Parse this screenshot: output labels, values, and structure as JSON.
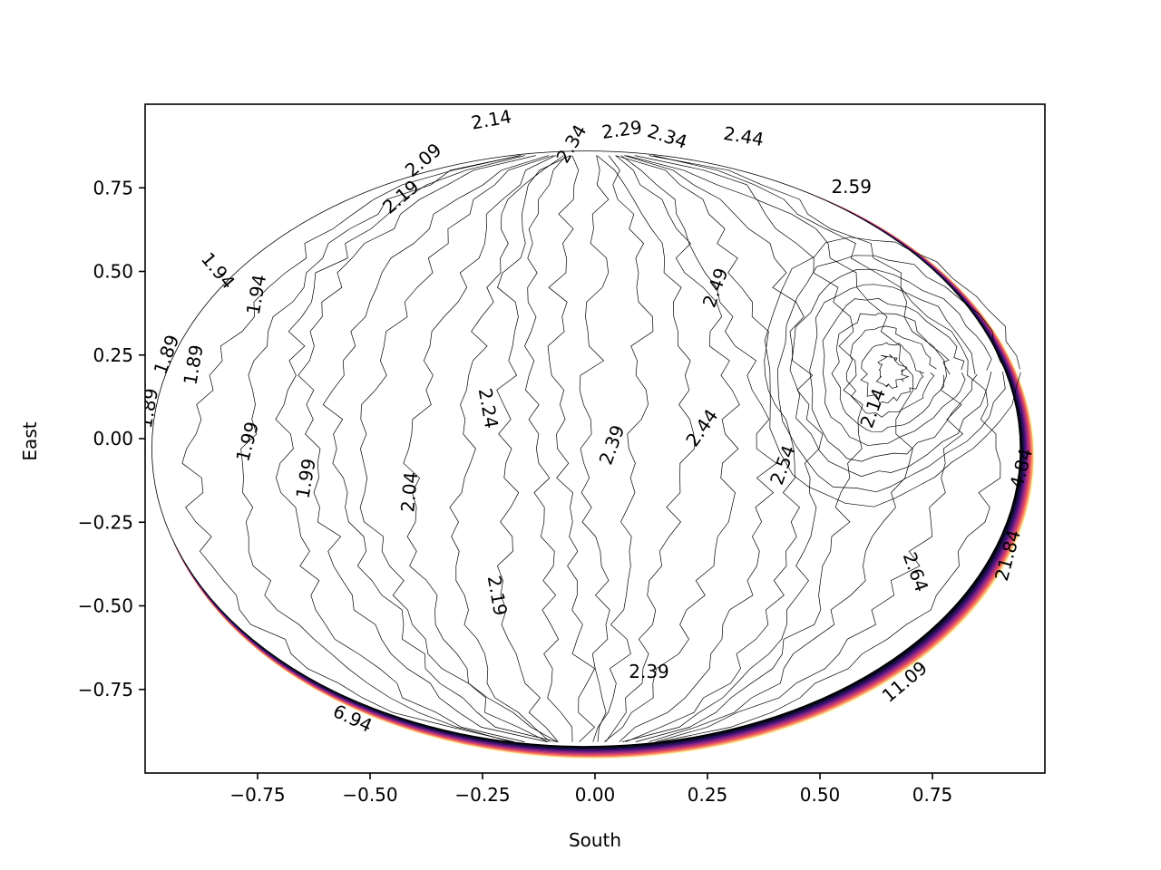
{
  "chart_data": {
    "type": "contour",
    "xlabel": "South",
    "ylabel": "East",
    "xlim": [
      -1.0,
      1.0
    ],
    "ylim": [
      -1.0,
      1.0
    ],
    "grid": false,
    "colormap": "magma",
    "x_ticks": [
      {
        "value": -0.75,
        "label": "−0.75"
      },
      {
        "value": -0.5,
        "label": "−0.50"
      },
      {
        "value": -0.25,
        "label": "−0.25"
      },
      {
        "value": 0.0,
        "label": "0.00"
      },
      {
        "value": 0.25,
        "label": "0.25"
      },
      {
        "value": 0.5,
        "label": "0.50"
      },
      {
        "value": 0.75,
        "label": "0.75"
      }
    ],
    "y_ticks": [
      {
        "value": 0.75,
        "label": "0.75"
      },
      {
        "value": 0.5,
        "label": "0.50"
      },
      {
        "value": 0.25,
        "label": "0.25"
      },
      {
        "value": 0.0,
        "label": "0.00"
      },
      {
        "value": -0.25,
        "label": "−0.25"
      },
      {
        "value": -0.5,
        "label": "−0.50"
      },
      {
        "value": -0.75,
        "label": "−0.75"
      }
    ],
    "contour_labels": [
      {
        "text": "2.14",
        "x": -0.23,
        "y": 0.95,
        "angle": -10
      },
      {
        "text": "2.29",
        "x": 0.06,
        "y": 0.92,
        "angle": -8
      },
      {
        "text": "2.34",
        "x": -0.05,
        "y": 0.88,
        "angle": -60
      },
      {
        "text": "2.34",
        "x": 0.16,
        "y": 0.9,
        "angle": 18
      },
      {
        "text": "2.44",
        "x": 0.33,
        "y": 0.9,
        "angle": 10
      },
      {
        "text": "2.09",
        "x": -0.38,
        "y": 0.83,
        "angle": -40
      },
      {
        "text": "2.19",
        "x": -0.43,
        "y": 0.72,
        "angle": -40
      },
      {
        "text": "2.59",
        "x": 0.57,
        "y": 0.75,
        "angle": 0
      },
      {
        "text": "1.94",
        "x": -0.84,
        "y": 0.5,
        "angle": 50
      },
      {
        "text": "1.94",
        "x": -0.75,
        "y": 0.43,
        "angle": -80
      },
      {
        "text": "2.49",
        "x": 0.27,
        "y": 0.45,
        "angle": -70
      },
      {
        "text": "1.89",
        "x": -0.95,
        "y": 0.25,
        "angle": -70
      },
      {
        "text": "1.89",
        "x": -0.89,
        "y": 0.22,
        "angle": -80
      },
      {
        "text": "1.89",
        "x": -0.99,
        "y": 0.09,
        "angle": -80
      },
      {
        "text": "2.24",
        "x": -0.24,
        "y": 0.09,
        "angle": 80
      },
      {
        "text": "2.14",
        "x": 0.62,
        "y": 0.09,
        "angle": -70
      },
      {
        "text": "2.39",
        "x": 0.04,
        "y": -0.02,
        "angle": -70
      },
      {
        "text": "2.44",
        "x": 0.24,
        "y": 0.03,
        "angle": -55
      },
      {
        "text": "1.99",
        "x": -0.77,
        "y": -0.01,
        "angle": -75
      },
      {
        "text": "2.54",
        "x": 0.42,
        "y": -0.08,
        "angle": -70
      },
      {
        "text": "4.84",
        "x": 0.95,
        "y": -0.09,
        "angle": -75
      },
      {
        "text": "1.99",
        "x": -0.64,
        "y": -0.12,
        "angle": -80
      },
      {
        "text": "2.04",
        "x": -0.41,
        "y": -0.16,
        "angle": -85
      },
      {
        "text": "2.64",
        "x": 0.71,
        "y": -0.4,
        "angle": 70
      },
      {
        "text": "21.84",
        "x": 0.92,
        "y": -0.35,
        "angle": -75
      },
      {
        "text": "2.19",
        "x": -0.22,
        "y": -0.47,
        "angle": 80
      },
      {
        "text": "2.39",
        "x": 0.12,
        "y": -0.7,
        "angle": 0
      },
      {
        "text": "11.09",
        "x": 0.69,
        "y": -0.73,
        "angle": -40
      },
      {
        "text": "6.94",
        "x": -0.54,
        "y": -0.84,
        "angle": 25
      }
    ]
  }
}
